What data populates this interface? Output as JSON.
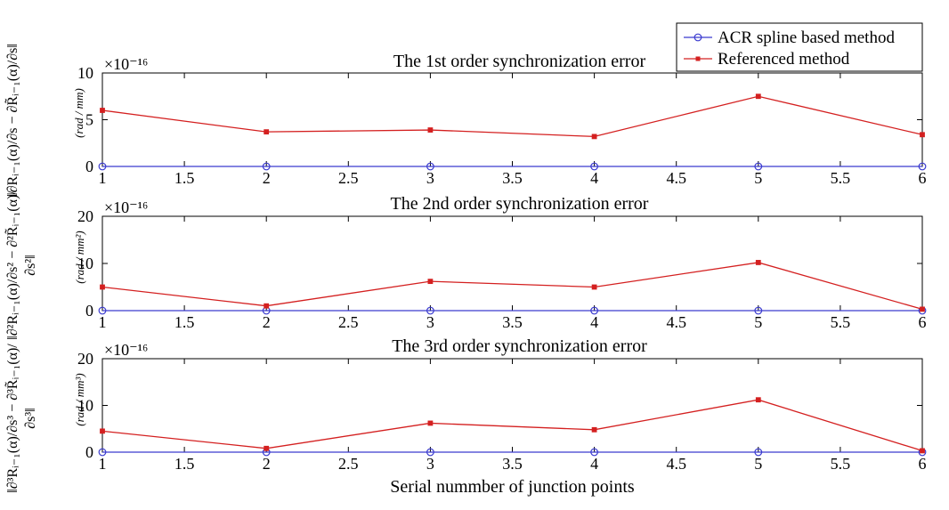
{
  "chart_data": [
    {
      "type": "line",
      "title": "The 1st order synchronization error",
      "ylabel_norm": "||∂R_{i-1}(α)/∂s − ∂R̃_{i-1}(α)/∂s||",
      "ylabel_unit": "(rad / mm)",
      "exponent": "×10⁻¹⁶",
      "x": [
        1,
        2,
        3,
        4,
        5,
        6
      ],
      "xticks": [
        "1",
        "1.5",
        "2",
        "2.5",
        "3",
        "3.5",
        "4",
        "4.5",
        "5",
        "5.5",
        "6"
      ],
      "xlim": [
        1,
        6
      ],
      "ylim": [
        0,
        10
      ],
      "yticks": [
        "0",
        "5",
        "10"
      ],
      "series": [
        {
          "name": "ACR spline based method",
          "color": "#3a3acf",
          "marker": "circle",
          "values": [
            0,
            0,
            0,
            0,
            0,
            0
          ]
        },
        {
          "name": "Referenced method",
          "color": "#d42020",
          "marker": "star",
          "values": [
            6.0,
            3.7,
            3.9,
            3.2,
            7.5,
            3.4
          ]
        }
      ]
    },
    {
      "type": "line",
      "title": "The 2nd order synchronization error",
      "ylabel_norm": "||∂²R_{i-1}(α)/∂s² − ∂²R̃_{i-1}(α)/∂s²||",
      "ylabel_unit": "(rad / mm²)",
      "exponent": "×10⁻¹⁶",
      "x": [
        1,
        2,
        3,
        4,
        5,
        6
      ],
      "xticks": [
        "1",
        "1.5",
        "2",
        "2.5",
        "3",
        "3.5",
        "4",
        "4.5",
        "5",
        "5.5",
        "6"
      ],
      "xlim": [
        1,
        6
      ],
      "ylim": [
        0,
        20
      ],
      "yticks": [
        "0",
        "10",
        "20"
      ],
      "series": [
        {
          "name": "ACR spline based method",
          "color": "#3a3acf",
          "marker": "circle",
          "values": [
            0,
            0,
            0,
            0,
            0,
            0
          ]
        },
        {
          "name": "Referenced method",
          "color": "#d42020",
          "marker": "star",
          "values": [
            5.0,
            1.0,
            6.2,
            5.0,
            10.2,
            0.3
          ]
        }
      ]
    },
    {
      "type": "line",
      "title": "The 3rd order synchronization error",
      "ylabel_norm": "||∂³R_{i-1}(α)/∂s³ − ∂³R̃_{i-1}(α)/∂s³||",
      "ylabel_unit": "(rad / mm³)",
      "exponent": "×10⁻¹⁶",
      "x": [
        1,
        2,
        3,
        4,
        5,
        6
      ],
      "xticks": [
        "1",
        "1.5",
        "2",
        "2.5",
        "3",
        "3.5",
        "4",
        "4.5",
        "5",
        "5.5",
        "6"
      ],
      "xlim": [
        1,
        6
      ],
      "ylim": [
        0,
        20
      ],
      "yticks": [
        "0",
        "10",
        "20"
      ],
      "series": [
        {
          "name": "ACR spline based method",
          "color": "#3a3acf",
          "marker": "circle",
          "values": [
            0,
            0,
            0,
            0,
            0,
            0
          ]
        },
        {
          "name": "Referenced method",
          "color": "#d42020",
          "marker": "star",
          "values": [
            4.5,
            0.8,
            6.2,
            4.8,
            11.2,
            0.3
          ]
        }
      ]
    }
  ],
  "xlabel": "Serial nummber of junction points",
  "legend": {
    "placement": "top-right",
    "entries": [
      {
        "label": "ACR spline based method",
        "color": "#3a3acf",
        "marker": "circle"
      },
      {
        "label": "Referenced method",
        "color": "#d42020",
        "marker": "star"
      }
    ]
  },
  "ylabels": [
    {
      "num_a": "∂Rᵢ₋₁(α)",
      "den_a": "∂s",
      "num_b": "∂R̃ᵢ₋₁(α)",
      "den_b": "∂s"
    },
    {
      "num_a": "∂²Rᵢ₋₁(α)",
      "den_a": "∂s²",
      "num_b": "∂²R̃ᵢ₋₁(α)",
      "den_b": "∂s²"
    },
    {
      "num_a": "∂³Rᵢ₋₁(α)",
      "den_a": "∂s³",
      "num_b": "∂³R̃ᵢ₋₁(α)",
      "den_b": "∂s³"
    }
  ]
}
